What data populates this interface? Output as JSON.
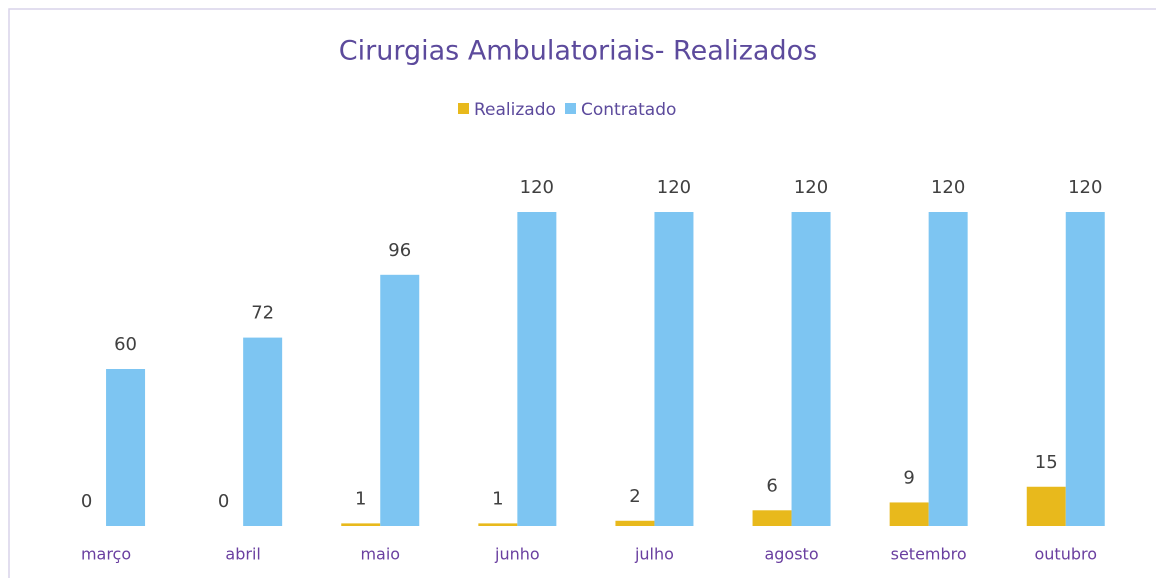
{
  "chart_data": {
    "type": "bar",
    "title": "Cirurgias Ambulatoriais- Realizados",
    "categories": [
      "março",
      "abril",
      "maio",
      "junho",
      "julho",
      "agosto",
      "setembro",
      "outubro"
    ],
    "series": [
      {
        "name": "Realizado",
        "color": "#e8b91c",
        "values": [
          0,
          0,
          1,
          1,
          2,
          6,
          9,
          15
        ]
      },
      {
        "name": "Contratado",
        "color": "#7dc5f2",
        "values": [
          60,
          72,
          96,
          120,
          120,
          120,
          120,
          120
        ]
      }
    ],
    "legend": "top"
  }
}
